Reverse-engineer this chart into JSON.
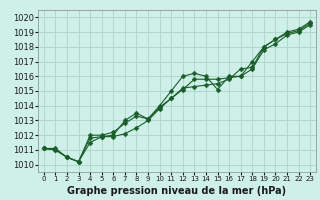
{
  "title": "Graphe pression niveau de la mer (hPa)",
  "bg_color": "#cff0e8",
  "grid_color": "#afd8ce",
  "line_color": "#1a5c2a",
  "marker_color": "#1a5c2a",
  "xlim": [
    -0.5,
    23.5
  ],
  "ylim": [
    1009.5,
    1020.5
  ],
  "xticks": [
    0,
    1,
    2,
    3,
    4,
    5,
    6,
    7,
    8,
    9,
    10,
    11,
    12,
    13,
    14,
    15,
    16,
    17,
    18,
    19,
    20,
    21,
    22,
    23
  ],
  "yticks": [
    1010,
    1011,
    1012,
    1013,
    1014,
    1015,
    1016,
    1017,
    1018,
    1019,
    1020
  ],
  "series": [
    [
      1011.1,
      1011.1,
      1010.5,
      1010.2,
      1011.8,
      1011.9,
      1012.0,
      1013.0,
      1013.5,
      1013.1,
      1014.0,
      1015.0,
      1016.0,
      1016.2,
      1016.0,
      1015.1,
      1016.0,
      1016.0,
      1017.0,
      1018.0,
      1018.5,
      1019.0,
      1019.2,
      1019.7
    ],
    [
      1011.1,
      1011.0,
      1010.5,
      1010.2,
      1011.5,
      1011.9,
      1011.9,
      1012.1,
      1012.5,
      1013.0,
      1013.8,
      1014.5,
      1015.1,
      1015.8,
      1015.8,
      1015.8,
      1015.9,
      1016.0,
      1016.5,
      1017.8,
      1018.2,
      1018.8,
      1019.0,
      1019.5
    ],
    [
      1011.1,
      1011.0,
      1010.5,
      1010.2,
      1012.0,
      1012.0,
      1012.2,
      1012.8,
      1013.3,
      1013.1,
      1013.9,
      1014.5,
      1015.2,
      1015.3,
      1015.4,
      1015.5,
      1015.8,
      1016.5,
      1016.6,
      1018.0,
      1018.5,
      1018.9,
      1019.1,
      1019.6
    ]
  ],
  "tick_fontsize": 6,
  "label_fontsize": 7,
  "linewidth": 0.8,
  "markersize": 2.5
}
